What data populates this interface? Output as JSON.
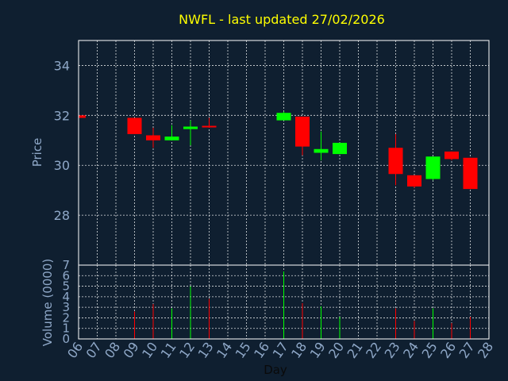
{
  "chart_data": {
    "type": "candlestick",
    "title": "NWFL - last updated 27/02/2026",
    "xlabel": "Day",
    "price_ylabel": "Price",
    "volume_ylabel": "Volume (0000)",
    "price_ylim": [
      26.0,
      35.0
    ],
    "price_ticks": [
      28,
      30,
      32,
      34
    ],
    "volume_ylim": [
      0,
      7
    ],
    "volume_ticks": [
      0,
      1,
      2,
      3,
      4,
      5,
      6,
      7
    ],
    "x_ticks": [
      "06",
      "07",
      "08",
      "09",
      "10",
      "11",
      "12",
      "13",
      "14",
      "15",
      "16",
      "17",
      "18",
      "19",
      "20",
      "21",
      "22",
      "23",
      "24",
      "25",
      "26",
      "27",
      "28"
    ],
    "up_color": "#00ff00",
    "down_color": "#ff0000",
    "grid": true,
    "candles": [
      {
        "day": "06",
        "open": 32.0,
        "high": 32.0,
        "low": 31.9,
        "close": 31.9,
        "volume": 0
      },
      {
        "day": "09",
        "open": 31.9,
        "high": 31.9,
        "low": 31.25,
        "close": 31.25,
        "volume": 2.6
      },
      {
        "day": "10",
        "open": 31.2,
        "high": 31.5,
        "low": 30.7,
        "close": 31.0,
        "volume": 3.3
      },
      {
        "day": "11",
        "open": 31.0,
        "high": 31.6,
        "low": 31.0,
        "close": 31.15,
        "volume": 2.9
      },
      {
        "day": "12",
        "open": 31.45,
        "high": 31.8,
        "low": 30.8,
        "close": 31.55,
        "volume": 5.0
      },
      {
        "day": "13",
        "open": 31.58,
        "high": 31.9,
        "low": 31.5,
        "close": 31.52,
        "volume": 3.8
      },
      {
        "day": "17",
        "open": 31.8,
        "high": 32.15,
        "low": 31.8,
        "close": 32.1,
        "volume": 6.4
      },
      {
        "day": "18",
        "open": 31.95,
        "high": 31.95,
        "low": 30.4,
        "close": 30.75,
        "volume": 3.4
      },
      {
        "day": "19",
        "open": 30.5,
        "high": 31.35,
        "low": 30.2,
        "close": 30.65,
        "volume": 3.1
      },
      {
        "day": "20",
        "open": 30.45,
        "high": 30.9,
        "low": 30.45,
        "close": 30.9,
        "volume": 2.1
      },
      {
        "day": "23",
        "open": 30.7,
        "high": 31.25,
        "low": 29.2,
        "close": 29.65,
        "volume": 2.9
      },
      {
        "day": "24",
        "open": 29.6,
        "high": 29.6,
        "low": 29.1,
        "close": 29.15,
        "volume": 1.7
      },
      {
        "day": "25",
        "open": 29.45,
        "high": 30.35,
        "low": 29.4,
        "close": 30.35,
        "volume": 2.9
      },
      {
        "day": "26",
        "open": 30.55,
        "high": 30.55,
        "low": 30.2,
        "close": 30.25,
        "volume": 1.5
      },
      {
        "day": "27",
        "open": 30.3,
        "high": 30.3,
        "low": 29.05,
        "close": 29.05,
        "volume": 2.1
      }
    ]
  }
}
